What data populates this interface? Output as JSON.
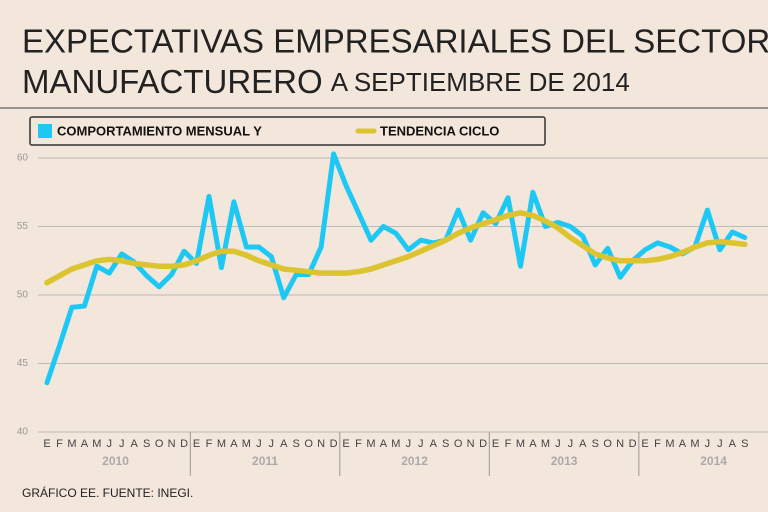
{
  "chart_data": {
    "type": "line",
    "title": "EXPECTATIVAS EMPRESARIALES DEL SECTOR",
    "title_line2": "MANUFACTURERO",
    "subtitle": "A SEPTIEMBRE DE 2014",
    "footer": "GRÁFICO EE. FUENTE: INEGI.",
    "categories": [
      "E",
      "F",
      "M",
      "A",
      "M",
      "J",
      "J",
      "A",
      "S",
      "O",
      "N",
      "D",
      "E",
      "F",
      "M",
      "A",
      "M",
      "J",
      "J",
      "A",
      "S",
      "O",
      "N",
      "D",
      "E",
      "F",
      "M",
      "A",
      "M",
      "J",
      "J",
      "A",
      "S",
      "O",
      "N",
      "D",
      "E",
      "F",
      "M",
      "A",
      "M",
      "J",
      "J",
      "A",
      "S",
      "O",
      "N",
      "D",
      "E",
      "F",
      "M",
      "A",
      "M",
      "J",
      "J",
      "A",
      "S"
    ],
    "years": [
      "2010",
      "2011",
      "2012",
      "2013",
      "2014"
    ],
    "series": [
      {
        "name": "COMPORTAMIENTO MENSUAL Y",
        "color": "#1ec8f5",
        "values": [
          43.6,
          46.3,
          49.1,
          49.2,
          52.1,
          51.6,
          53.0,
          52.4,
          51.4,
          50.6,
          51.5,
          53.2,
          52.3,
          57.2,
          52.0,
          56.8,
          53.5,
          53.5,
          52.8,
          49.8,
          51.5,
          51.5,
          53.5,
          60.3,
          58.0,
          56.0,
          54.0,
          55.0,
          54.5,
          53.3,
          54.0,
          53.8,
          54.0,
          56.2,
          54.0,
          56.0,
          55.2,
          57.1,
          52.1,
          57.5,
          55.0,
          55.3,
          55.0,
          54.3,
          52.2,
          53.4,
          51.3,
          52.5,
          53.3,
          53.8,
          53.5,
          53.0,
          53.5,
          56.2,
          53.3,
          54.6,
          54.2
        ]
      },
      {
        "name": "TENDENCIA CICLO",
        "color": "#dcc430",
        "values": [
          50.9,
          51.4,
          51.9,
          52.2,
          52.5,
          52.6,
          52.5,
          52.3,
          52.2,
          52.1,
          52.1,
          52.2,
          52.5,
          52.9,
          53.2,
          53.2,
          52.9,
          52.5,
          52.2,
          51.9,
          51.8,
          51.7,
          51.6,
          51.6,
          51.6,
          51.7,
          51.9,
          52.2,
          52.5,
          52.8,
          53.2,
          53.6,
          54.0,
          54.5,
          54.9,
          55.2,
          55.5,
          55.8,
          56.0,
          55.8,
          55.4,
          54.9,
          54.2,
          53.6,
          53.0,
          52.7,
          52.5,
          52.5,
          52.5,
          52.6,
          52.8,
          53.1,
          53.5,
          53.8,
          53.9,
          53.8,
          53.7
        ]
      }
    ],
    "ylim": [
      40,
      60
    ],
    "yticks": [
      40,
      45,
      50,
      55,
      60
    ],
    "grid": true
  }
}
